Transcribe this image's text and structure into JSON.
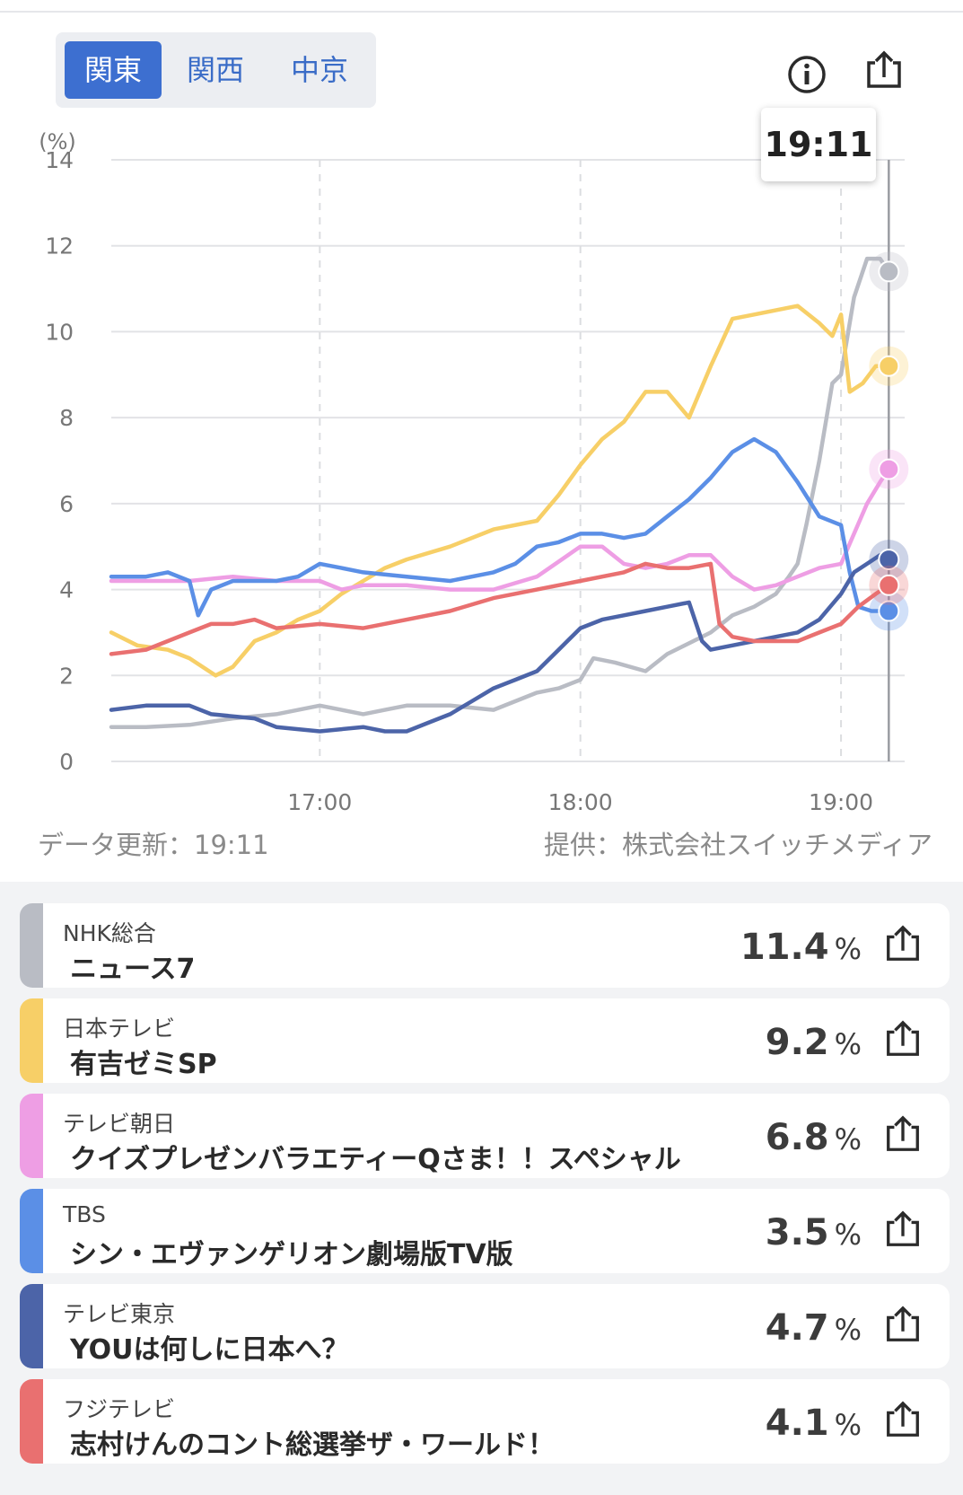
{
  "tabs": [
    {
      "label": "関東",
      "active": true
    },
    {
      "label": "関西",
      "active": false
    },
    {
      "label": "中京",
      "active": false
    }
  ],
  "icons": {
    "info": "info-icon",
    "share": "share-icon"
  },
  "tooltip_time": "19:11",
  "footer": {
    "updated": "データ更新：19:11",
    "source": "提供：株式会社スイッチメディア"
  },
  "chart_data": {
    "type": "line",
    "ylabel": "(%)",
    "ylim": [
      0,
      14
    ],
    "yticks": [
      "0",
      "2",
      "4",
      "6",
      "8",
      "10",
      "12",
      "14"
    ],
    "xlim": [
      "16:12",
      "19:13"
    ],
    "xticks": [
      {
        "time": "17:00",
        "label": "17:00"
      },
      {
        "time": "18:00",
        "label": "18:00"
      },
      {
        "time": "19:00",
        "label": "19:00"
      }
    ],
    "grid": true,
    "cursor_time": "19:11",
    "series": [
      {
        "name": "NHK総合",
        "color": "#b9bcc4",
        "points": [
          [
            "16:12",
            0.8
          ],
          [
            "16:20",
            0.8
          ],
          [
            "16:30",
            0.85
          ],
          [
            "16:40",
            1.0
          ],
          [
            "16:50",
            1.1
          ],
          [
            "17:00",
            1.3
          ],
          [
            "17:05",
            1.2
          ],
          [
            "17:10",
            1.1
          ],
          [
            "17:15",
            1.2
          ],
          [
            "17:20",
            1.3
          ],
          [
            "17:30",
            1.3
          ],
          [
            "17:40",
            1.2
          ],
          [
            "17:45",
            1.4
          ],
          [
            "17:50",
            1.6
          ],
          [
            "17:55",
            1.7
          ],
          [
            "18:00",
            1.9
          ],
          [
            "18:03",
            2.4
          ],
          [
            "18:08",
            2.3
          ],
          [
            "18:15",
            2.1
          ],
          [
            "18:20",
            2.5
          ],
          [
            "18:30",
            3.0
          ],
          [
            "18:35",
            3.4
          ],
          [
            "18:40",
            3.6
          ],
          [
            "18:45",
            3.9
          ],
          [
            "18:48",
            4.3
          ],
          [
            "18:50",
            4.6
          ],
          [
            "18:52",
            5.5
          ],
          [
            "18:55",
            7.0
          ],
          [
            "18:58",
            8.8
          ],
          [
            "19:00",
            9.0
          ],
          [
            "19:03",
            10.8
          ],
          [
            "19:06",
            11.7
          ],
          [
            "19:09",
            11.7
          ],
          [
            "19:11",
            11.4
          ]
        ]
      },
      {
        "name": "日本テレビ",
        "color": "#f7cf67",
        "points": [
          [
            "16:12",
            3.0
          ],
          [
            "16:18",
            2.7
          ],
          [
            "16:25",
            2.6
          ],
          [
            "16:30",
            2.4
          ],
          [
            "16:36",
            2.0
          ],
          [
            "16:40",
            2.2
          ],
          [
            "16:45",
            2.8
          ],
          [
            "16:50",
            3.0
          ],
          [
            "16:55",
            3.3
          ],
          [
            "17:00",
            3.5
          ],
          [
            "17:05",
            3.9
          ],
          [
            "17:10",
            4.2
          ],
          [
            "17:15",
            4.5
          ],
          [
            "17:20",
            4.7
          ],
          [
            "17:30",
            5.0
          ],
          [
            "17:40",
            5.4
          ],
          [
            "17:50",
            5.6
          ],
          [
            "17:55",
            6.2
          ],
          [
            "18:00",
            6.9
          ],
          [
            "18:05",
            7.5
          ],
          [
            "18:10",
            7.9
          ],
          [
            "18:15",
            8.6
          ],
          [
            "18:20",
            8.6
          ],
          [
            "18:25",
            8.0
          ],
          [
            "18:30",
            9.2
          ],
          [
            "18:35",
            10.3
          ],
          [
            "18:40",
            10.4
          ],
          [
            "18:50",
            10.6
          ],
          [
            "18:55",
            10.2
          ],
          [
            "18:58",
            9.9
          ],
          [
            "19:00",
            10.4
          ],
          [
            "19:02",
            8.6
          ],
          [
            "19:05",
            8.8
          ],
          [
            "19:08",
            9.2
          ],
          [
            "19:11",
            9.2
          ]
        ]
      },
      {
        "name": "テレビ朝日",
        "color": "#ee9ee4",
        "points": [
          [
            "16:12",
            4.2
          ],
          [
            "16:20",
            4.2
          ],
          [
            "16:30",
            4.2
          ],
          [
            "16:40",
            4.3
          ],
          [
            "16:50",
            4.2
          ],
          [
            "17:00",
            4.2
          ],
          [
            "17:05",
            4.0
          ],
          [
            "17:10",
            4.1
          ],
          [
            "17:20",
            4.1
          ],
          [
            "17:30",
            4.0
          ],
          [
            "17:40",
            4.0
          ],
          [
            "17:50",
            4.3
          ],
          [
            "18:00",
            5.0
          ],
          [
            "18:05",
            5.0
          ],
          [
            "18:10",
            4.6
          ],
          [
            "18:15",
            4.5
          ],
          [
            "18:20",
            4.6
          ],
          [
            "18:25",
            4.8
          ],
          [
            "18:30",
            4.8
          ],
          [
            "18:35",
            4.3
          ],
          [
            "18:40",
            4.0
          ],
          [
            "18:45",
            4.1
          ],
          [
            "18:50",
            4.3
          ],
          [
            "18:55",
            4.5
          ],
          [
            "19:00",
            4.6
          ],
          [
            "19:03",
            5.3
          ],
          [
            "19:06",
            6.0
          ],
          [
            "19:09",
            6.5
          ],
          [
            "19:11",
            6.8
          ]
        ]
      },
      {
        "name": "TBS",
        "color": "#5b8fe6",
        "points": [
          [
            "16:12",
            4.3
          ],
          [
            "16:20",
            4.3
          ],
          [
            "16:25",
            4.4
          ],
          [
            "16:30",
            4.2
          ],
          [
            "16:32",
            3.4
          ],
          [
            "16:35",
            4.0
          ],
          [
            "16:40",
            4.2
          ],
          [
            "16:50",
            4.2
          ],
          [
            "16:55",
            4.3
          ],
          [
            "17:00",
            4.6
          ],
          [
            "17:05",
            4.5
          ],
          [
            "17:10",
            4.4
          ],
          [
            "17:20",
            4.3
          ],
          [
            "17:30",
            4.2
          ],
          [
            "17:40",
            4.4
          ],
          [
            "17:45",
            4.6
          ],
          [
            "17:50",
            5.0
          ],
          [
            "17:55",
            5.1
          ],
          [
            "18:00",
            5.3
          ],
          [
            "18:05",
            5.3
          ],
          [
            "18:10",
            5.2
          ],
          [
            "18:15",
            5.3
          ],
          [
            "18:20",
            5.7
          ],
          [
            "18:25",
            6.1
          ],
          [
            "18:30",
            6.6
          ],
          [
            "18:35",
            7.2
          ],
          [
            "18:40",
            7.5
          ],
          [
            "18:45",
            7.2
          ],
          [
            "18:50",
            6.5
          ],
          [
            "18:55",
            5.7
          ],
          [
            "19:00",
            5.5
          ],
          [
            "19:02",
            4.4
          ],
          [
            "19:04",
            3.6
          ],
          [
            "19:07",
            3.5
          ],
          [
            "19:11",
            3.5
          ]
        ]
      },
      {
        "name": "テレビ東京",
        "color": "#4c64a8",
        "points": [
          [
            "16:12",
            1.2
          ],
          [
            "16:20",
            1.3
          ],
          [
            "16:30",
            1.3
          ],
          [
            "16:35",
            1.1
          ],
          [
            "16:45",
            1.0
          ],
          [
            "16:50",
            0.8
          ],
          [
            "17:00",
            0.7
          ],
          [
            "17:05",
            0.75
          ],
          [
            "17:10",
            0.8
          ],
          [
            "17:15",
            0.7
          ],
          [
            "17:20",
            0.7
          ],
          [
            "17:25",
            0.9
          ],
          [
            "17:30",
            1.1
          ],
          [
            "17:35",
            1.4
          ],
          [
            "17:40",
            1.7
          ],
          [
            "17:45",
            1.9
          ],
          [
            "17:50",
            2.1
          ],
          [
            "17:55",
            2.6
          ],
          [
            "18:00",
            3.1
          ],
          [
            "18:05",
            3.3
          ],
          [
            "18:10",
            3.4
          ],
          [
            "18:15",
            3.5
          ],
          [
            "18:20",
            3.6
          ],
          [
            "18:25",
            3.7
          ],
          [
            "18:28",
            2.8
          ],
          [
            "18:30",
            2.6
          ],
          [
            "18:35",
            2.7
          ],
          [
            "18:40",
            2.8
          ],
          [
            "18:45",
            2.9
          ],
          [
            "18:50",
            3.0
          ],
          [
            "18:55",
            3.3
          ],
          [
            "19:00",
            3.9
          ],
          [
            "19:03",
            4.4
          ],
          [
            "19:06",
            4.6
          ],
          [
            "19:09",
            4.8
          ],
          [
            "19:11",
            4.7
          ]
        ]
      },
      {
        "name": "フジテレビ",
        "color": "#e97070",
        "points": [
          [
            "16:12",
            2.5
          ],
          [
            "16:20",
            2.6
          ],
          [
            "16:25",
            2.8
          ],
          [
            "16:30",
            3.0
          ],
          [
            "16:35",
            3.2
          ],
          [
            "16:40",
            3.2
          ],
          [
            "16:45",
            3.3
          ],
          [
            "16:50",
            3.1
          ],
          [
            "17:00",
            3.2
          ],
          [
            "17:10",
            3.1
          ],
          [
            "17:20",
            3.3
          ],
          [
            "17:30",
            3.5
          ],
          [
            "17:40",
            3.8
          ],
          [
            "17:50",
            4.0
          ],
          [
            "18:00",
            4.2
          ],
          [
            "18:10",
            4.4
          ],
          [
            "18:15",
            4.6
          ],
          [
            "18:20",
            4.5
          ],
          [
            "18:25",
            4.5
          ],
          [
            "18:30",
            4.6
          ],
          [
            "18:32",
            3.2
          ],
          [
            "18:35",
            2.9
          ],
          [
            "18:40",
            2.8
          ],
          [
            "18:45",
            2.8
          ],
          [
            "18:50",
            2.8
          ],
          [
            "18:55",
            3.0
          ],
          [
            "19:00",
            3.2
          ],
          [
            "19:04",
            3.6
          ],
          [
            "19:08",
            3.9
          ],
          [
            "19:11",
            4.1
          ]
        ]
      }
    ]
  },
  "programs": [
    {
      "channel": "NHK総合",
      "title": "ニュース7",
      "value": "11.4",
      "unit": "%",
      "color": "#b9bcc4"
    },
    {
      "channel": "日本テレビ",
      "title": "有吉ゼミSP",
      "value": "9.2",
      "unit": "%",
      "color": "#f7cf67"
    },
    {
      "channel": "テレビ朝日",
      "title": "クイズプレゼンバラエティーQさま！！スペシャル",
      "value": "6.8",
      "unit": "%",
      "color": "#ee9ee4"
    },
    {
      "channel": "TBS",
      "title": "シン・エヴァンゲリオン劇場版TV版",
      "value": "3.5",
      "unit": "%",
      "color": "#5b8fe6"
    },
    {
      "channel": "テレビ東京",
      "title": "YOUは何しに日本へ？",
      "value": "4.7",
      "unit": "%",
      "color": "#4c64a8"
    },
    {
      "channel": "フジテレビ",
      "title": "志村けんのコント総選挙ザ・ワールド！",
      "value": "4.1",
      "unit": "%",
      "color": "#e97070"
    }
  ]
}
